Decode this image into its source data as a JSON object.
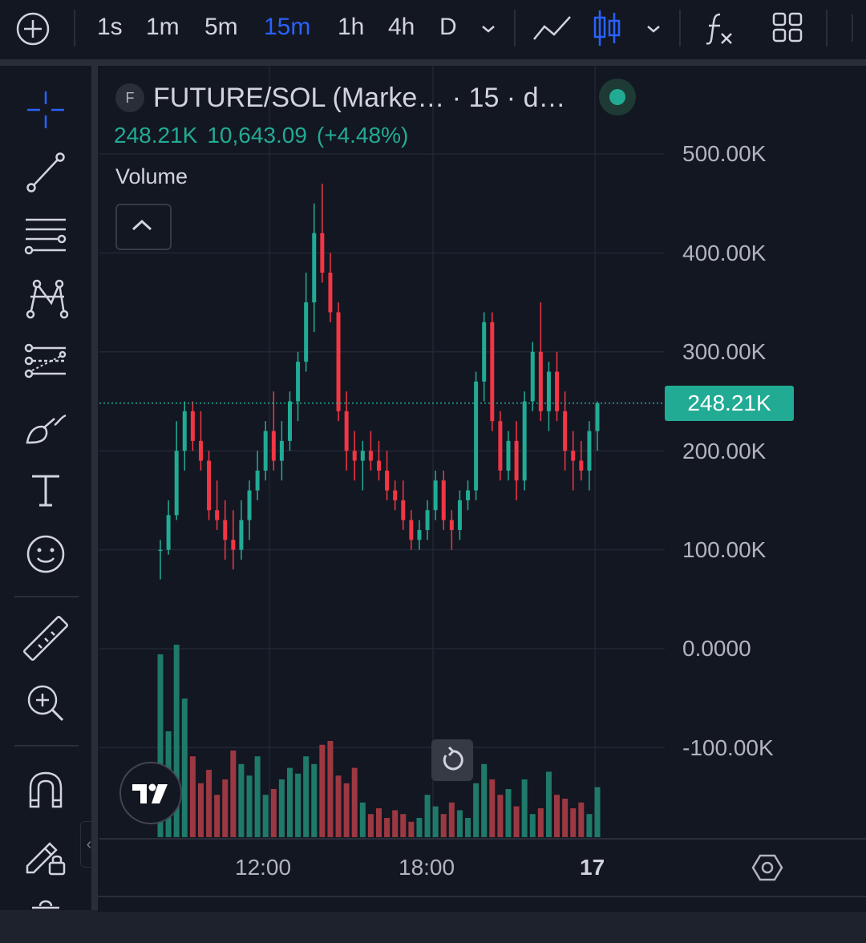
{
  "toolbar": {
    "timeframes": [
      {
        "label": "1s",
        "active": false
      },
      {
        "label": "1m",
        "active": false
      },
      {
        "label": "5m",
        "active": false
      },
      {
        "label": "15m",
        "active": true
      },
      {
        "label": "1h",
        "active": false
      },
      {
        "label": "4h",
        "active": false
      },
      {
        "label": "D",
        "active": false
      }
    ],
    "icons": [
      "add-circle-icon",
      "chevron-down-icon",
      "line-chart-icon",
      "candles-icon",
      "chevron-down-icon",
      "indicators-fx-icon",
      "layout-grid-icon"
    ]
  },
  "sidebar": {
    "tools": [
      "crosshair-icon",
      "trend-line-icon",
      "horizontal-lines-icon",
      "pattern-icon",
      "fib-levels-icon",
      "brush-icon",
      "text-icon",
      "emoji-icon",
      "ruler-icon",
      "zoom-in-icon",
      "magnet-icon",
      "lock-drawing-icon",
      "trash-icon"
    ]
  },
  "legend": {
    "badge": "F",
    "title": "FUTURE/SOL (Marke… · 15 · d…",
    "value": "248.21K",
    "change": "10,643.09",
    "change_pct": "(+4.48%)",
    "volume_label": "Volume"
  },
  "colors": {
    "up": "#22ab94",
    "down": "#f23645",
    "up_volume": "#1f7a6a",
    "down_volume": "#9c3841",
    "accent": "#2962ff",
    "background": "#131722"
  },
  "chart_data": {
    "type": "candlestick",
    "title": "FUTURE/SOL (Marke… · 15 · d…",
    "interval": "15",
    "y_ticks": [
      "500.00K",
      "400.00K",
      "300.00K",
      "200.00K",
      "100.00K",
      "0.0000",
      "-100.00K"
    ],
    "x_ticks": [
      "12:00",
      "18:00",
      "17"
    ],
    "ylim": [
      -200000,
      550000
    ],
    "last_price": "248.21K",
    "last_price_value": 248210,
    "grid": true,
    "candles": [
      [
        100000,
        110000,
        70000,
        100000
      ],
      [
        100000,
        150000,
        95000,
        135000
      ],
      [
        135000,
        230000,
        130000,
        200000
      ],
      [
        200000,
        250000,
        180000,
        240000
      ],
      [
        240000,
        250000,
        200000,
        210000
      ],
      [
        210000,
        240000,
        180000,
        190000
      ],
      [
        190000,
        200000,
        130000,
        140000
      ],
      [
        140000,
        170000,
        120000,
        130000
      ],
      [
        130000,
        150000,
        90000,
        110000
      ],
      [
        110000,
        140000,
        80000,
        100000
      ],
      [
        100000,
        150000,
        90000,
        130000
      ],
      [
        130000,
        170000,
        110000,
        160000
      ],
      [
        160000,
        200000,
        150000,
        180000
      ],
      [
        180000,
        230000,
        170000,
        220000
      ],
      [
        220000,
        260000,
        180000,
        190000
      ],
      [
        190000,
        230000,
        170000,
        210000
      ],
      [
        210000,
        260000,
        200000,
        250000
      ],
      [
        250000,
        300000,
        230000,
        290000
      ],
      [
        290000,
        380000,
        280000,
        350000
      ],
      [
        350000,
        450000,
        320000,
        420000
      ],
      [
        420000,
        470000,
        370000,
        380000
      ],
      [
        380000,
        400000,
        330000,
        340000
      ],
      [
        340000,
        350000,
        230000,
        240000
      ],
      [
        240000,
        260000,
        180000,
        200000
      ],
      [
        200000,
        220000,
        170000,
        190000
      ],
      [
        190000,
        210000,
        160000,
        200000
      ],
      [
        200000,
        220000,
        180000,
        190000
      ],
      [
        190000,
        210000,
        170000,
        180000
      ],
      [
        180000,
        200000,
        150000,
        160000
      ],
      [
        160000,
        170000,
        140000,
        150000
      ],
      [
        150000,
        170000,
        120000,
        130000
      ],
      [
        130000,
        140000,
        100000,
        110000
      ],
      [
        110000,
        130000,
        100000,
        120000
      ],
      [
        120000,
        150000,
        110000,
        140000
      ],
      [
        140000,
        180000,
        130000,
        170000
      ],
      [
        170000,
        180000,
        120000,
        130000
      ],
      [
        130000,
        140000,
        100000,
        120000
      ],
      [
        120000,
        160000,
        110000,
        150000
      ],
      [
        150000,
        170000,
        140000,
        160000
      ],
      [
        160000,
        280000,
        150000,
        270000
      ],
      [
        270000,
        340000,
        250000,
        330000
      ],
      [
        330000,
        340000,
        220000,
        230000
      ],
      [
        230000,
        240000,
        170000,
        180000
      ],
      [
        180000,
        220000,
        170000,
        210000
      ],
      [
        210000,
        230000,
        150000,
        170000
      ],
      [
        170000,
        260000,
        160000,
        250000
      ],
      [
        250000,
        310000,
        240000,
        300000
      ],
      [
        300000,
        350000,
        230000,
        240000
      ],
      [
        240000,
        290000,
        220000,
        280000
      ],
      [
        280000,
        300000,
        230000,
        240000
      ],
      [
        240000,
        260000,
        180000,
        200000
      ],
      [
        200000,
        220000,
        160000,
        190000
      ],
      [
        190000,
        210000,
        170000,
        180000
      ],
      [
        180000,
        230000,
        160000,
        220000
      ],
      [
        220000,
        250000,
        200000,
        248210
      ]
    ],
    "volumes": [
      0.95,
      0.55,
      1.0,
      0.72,
      0.42,
      0.28,
      0.35,
      0.22,
      0.3,
      0.45,
      0.38,
      0.32,
      0.42,
      0.22,
      0.25,
      0.3,
      0.36,
      0.33,
      0.42,
      0.38,
      0.48,
      0.5,
      0.32,
      0.28,
      0.36,
      0.18,
      0.12,
      0.15,
      0.1,
      0.14,
      0.12,
      0.08,
      0.1,
      0.22,
      0.16,
      0.12,
      0.18,
      0.14,
      0.1,
      0.28,
      0.38,
      0.3,
      0.22,
      0.25,
      0.16,
      0.3,
      0.12,
      0.15,
      0.34,
      0.22,
      0.2,
      0.15,
      0.18,
      0.12,
      0.26
    ]
  }
}
